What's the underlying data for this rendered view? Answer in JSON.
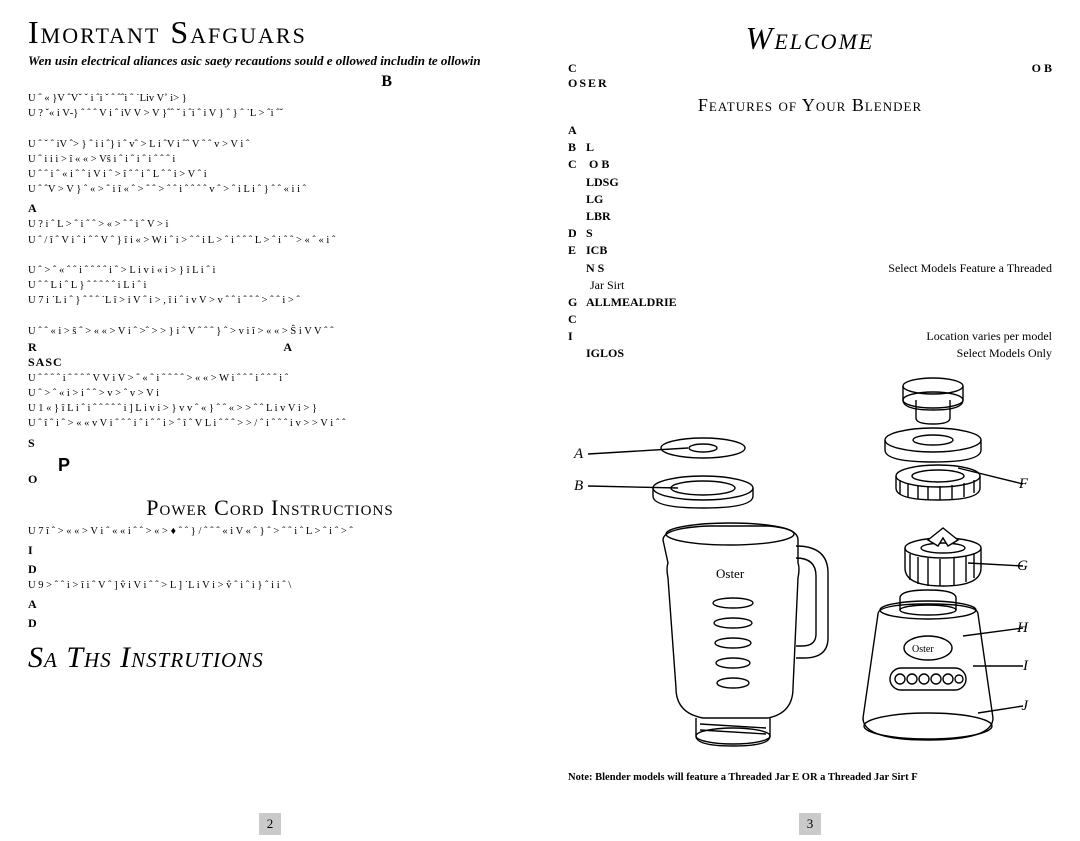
{
  "left": {
    "title": "Imortant Safguars",
    "intro": "Wen usin electrical aliances asic saety recautions sould e ollowed includin te ollowin",
    "sec_b": "B",
    "bullets_b": [
      "U ˆ «  }V  ˆVˇ   ˇ   i ˆi ˇ   ˆ ˆˆi ˆ ˙Liv  V˚ i>    }",
      "U ?  ˇ«   i V‑}  ˆ ˆ ˆ V i ˆ  iV   V > V  }ˆˆ   ˇ  i ˆi ˆ  i V   } ˆ   } ˆ      ˙L > ˆi ˆˇ",
      "",
      "U ˆ  ˇ  ˆ iV   ˆ>  } ˆ i  i ˆ} i ˆ vˆ > L i  ˆV     i  ˆˆ   V   ˆ  ˆ   v > V i ˆ",
      "U ˆ i  i  i >  î « «   >  Vŝ i ˆ  i ˆ i ˆ  i ˆ   ˆ ˆ i",
      "U ˆ  ˆ i ˆ  « i     ˆ  ˆ i V i ˆ >   î  ˆ  ˆ i  ˆ L  ˆ  ˆ  i >  V     ˆ  i",
      "U ˆ   ˆV   > V    } ˆ «  >  ˆ i î « ˆ >  ˆ ˆ >  ˆ ˆ  i  ˆ   ˆ ˆ ˆ v ˆ >  ˆ  i L  i  ˆ   } ˆ ˆ «  i  i  ˆ"
    ],
    "sec_a": "A",
    "bullets_a": [
      "U ? i ˆ L > ˆ i ˆ ˆ  >  « > ˆ  ˆ  i ˆ    V >   i",
      "U ˆ  /  î ˆ  V i ˆ  i ˆ  ˆ  V  ˆ     } î  i  «  > W i ˆ  i   > ˆ ˆ i  L  > ˆ i ˆ ˆ ˆ L > ˆ i ˆ      ˆ > « ˆ   «  i  ˆ",
      "",
      "U ˆ  >  ˆ « ˆ   ˆ i ˆ  ˆ ˆ ˆ   i ˆ > L i v  i « i  >   } î L  i  ˆ i",
      "U ˆ   ˆ  L  i  ˆ L    } ˆ   ˆ ˆ ˆ ˆ  i L  i  ˆ i",
      "U  7   i ˙L  i  ˆ   } ˆ  ˆ   ˆ ˙L î  >  i V ˆ  i >   , î   i ˆ   i v    V > v ˆ   ˆ  i ˆ  ˆ ˆ  >    ˆ ˆ  i >  ˆ",
      "",
      "U ˆ    ˆ « i  >  ŝ ˆ  > « «   >  V i ˆ >ˆ >  > } i ˆ V   ˆ ˆ ˆ   } ˆ  > v   i  î > « «   >  Ŝ i V   V   ˆ  ˆ"
    ],
    "sec_r": "R",
    "sec_sasc": "SASC",
    "bullets_r": [
      "U  ˆ ˆ    ˆ ˆ i ˆ  ˆ   ˆ ˆ  V  V    i  V  > ˆ  «  ˆ  i ˆ ˆ ˆ ˆ > « «   >  W i ˆ ˆ  ˆ i   ˆ ˆ ˆ i ˆ",
      "U ˆ   >  ˆ « i  >  i ˆ ˆ > v  >  ˆ  v > V i",
      "U  1  «   } î L  i  ˆ i ˆ  ˆ  ˆ  ˆ ˆ i ] L i v   i >    } v v ˆ «    } ˆ ˆ « >  > ˆ ˆ L i v   V  i >    }",
      "U  ˆ  î ˆ i ˆ  > « «   v V i ˆ ˆ ˆ  i  ˆ i ˆ ˆ i > ˆ î ˆ V   L i ˆ ˆ   ˆ >   >  / ˆ i ˆ  ˆ  ˆ i v >   > V   i  ˆ ˆ"
    ],
    "sec_s": "S",
    "pc_title": "Power Cord Instructions",
    "sec_o": "O",
    "pc_bullets": [
      "U  7   î ˆ > « «   >  V i ˆ  « « i ˆ ˆ  > «   >   ♦ ˆ ˆ }  /  ˆ  ˆ ˆ  «  i V « ˆ   } ˆ > ˆ ˆ  i ˆ L  > ˆ i ˆ >  ˆ"
    ],
    "sec_i": "I",
    "sec_d": "D",
    "pc_bullets2": [
      "U  9   >  ˆ ˆ i >  î   i  ˆ    V   ˆ ] v̂ i V i ˆ ˆ > L  ] ˙L i V i   >   v̂     ˆ i ˆ i } ˆ   i   i ˆ \\"
    ],
    "sec_a2": "A",
    "sec_d2": "D",
    "save": "Sa  Ths Instrutions",
    "pagenum": "2"
  },
  "right": {
    "welcome": "Welcome",
    "congrats_c": "C",
    "congrats_ob": "O    B",
    "oser": "OSER",
    "features": "Features of Your Blender",
    "items": [
      {
        "l": "A",
        "t": "",
        "s": ""
      },
      {
        "l": "B",
        "t": "L",
        "s": ""
      },
      {
        "l": "C",
        "t": "      O        B",
        "s": ""
      },
      {
        "l": "",
        "t": "LDSG",
        "s": ""
      },
      {
        "l": "",
        "t": "LG",
        "s": ""
      },
      {
        "l": "",
        "t": "LBR",
        "s": ""
      },
      {
        "l": "D",
        "t": "S",
        "s": ""
      },
      {
        "l": "E",
        "t": "ICB",
        "s": ""
      },
      {
        "l": "",
        "t": "N S",
        "s": "Select Models Feature a Threaded"
      },
      {
        "l": "",
        "t": "",
        "plain": "Jar Sirt"
      },
      {
        "l": "G",
        "t": "ALLMEALDRIE",
        "s": ""
      },
      {
        "l": "C",
        "t": "",
        "s": ""
      },
      {
        "l": "I",
        "t": "",
        "s": "Location varies per model"
      },
      {
        "l": "",
        "t": "IGLOS",
        "s": "Select Models Only"
      }
    ],
    "note": "Note: Blender models will feature a Threaded Jar E OR a Threaded Jar Sirt F",
    "pagenum": "3",
    "labels": {
      "A": "A",
      "B": "B",
      "F": "F",
      "G": "G",
      "H": "H",
      "I": "I",
      "J": "J"
    }
  },
  "style": {
    "page_bg": "#ffffff",
    "num_bg": "#c9cac9",
    "stroke": "#000000",
    "line_w": 1.4
  }
}
